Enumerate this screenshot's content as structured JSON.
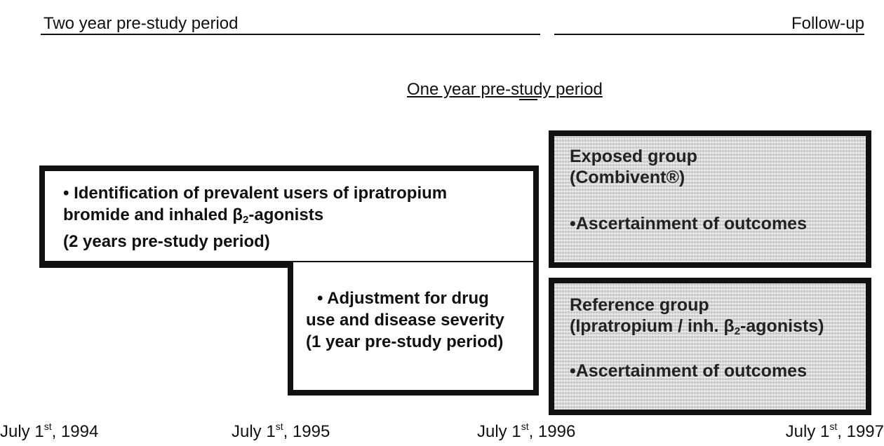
{
  "header": {
    "left": "Two year pre-study period",
    "right": "Follow-up"
  },
  "subheader": "One year pre-study period",
  "identification_box": {
    "line1": "• Identification of prevalent users of ipratropium",
    "line2": [
      "bromide and inhaled β",
      "2",
      "-agonists"
    ],
    "line3": "(2 years pre-study period)"
  },
  "adjustment_box": {
    "lines": [
      "• Adjustment  for drug",
      "use and disease severity",
      "(1 year pre-study period)"
    ]
  },
  "exposed_box": {
    "title": "Exposed group",
    "drug": "(Combivent®)",
    "outcome": "•Ascertainment of outcomes"
  },
  "reference_box": {
    "title": "Reference group",
    "drug": [
      "(Ipratropium /  inh. β",
      "2",
      "-agonists)"
    ],
    "outcome": "•Ascertainment of outcomes"
  },
  "dates": [
    {
      "day": "July 1",
      "suffix": "st",
      "year": ", 1994"
    },
    {
      "day": "July 1",
      "suffix": "st",
      "year": ", 1995"
    },
    {
      "day": "July 1",
      "suffix": "st",
      "year": ", 1996"
    },
    {
      "day": "July 1",
      "suffix": "st",
      "year": ", 1997"
    }
  ]
}
